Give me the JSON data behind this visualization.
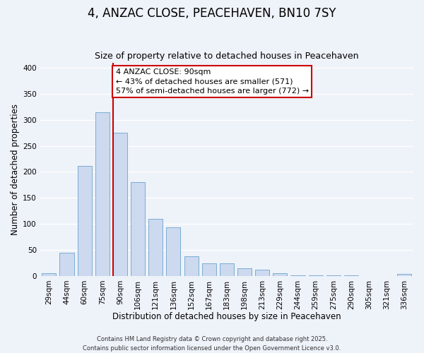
{
  "title": "4, ANZAC CLOSE, PEACEHAVEN, BN10 7SY",
  "subtitle": "Size of property relative to detached houses in Peacehaven",
  "xlabel": "Distribution of detached houses by size in Peacehaven",
  "ylabel": "Number of detached properties",
  "categories": [
    "29sqm",
    "44sqm",
    "60sqm",
    "75sqm",
    "90sqm",
    "106sqm",
    "121sqm",
    "136sqm",
    "152sqm",
    "167sqm",
    "183sqm",
    "198sqm",
    "213sqm",
    "229sqm",
    "244sqm",
    "259sqm",
    "275sqm",
    "290sqm",
    "305sqm",
    "321sqm",
    "336sqm"
  ],
  "values": [
    5,
    44,
    211,
    315,
    275,
    180,
    110,
    93,
    38,
    24,
    24,
    15,
    12,
    5,
    1,
    1,
    1,
    1,
    0,
    0,
    4
  ],
  "bar_color": "#ccd9ef",
  "bar_edge_color": "#7aadd4",
  "vline_index": 4,
  "vline_color": "#cc0000",
  "ylim": [
    0,
    410
  ],
  "yticks": [
    0,
    50,
    100,
    150,
    200,
    250,
    300,
    350,
    400
  ],
  "annotation_line1": "4 ANZAC CLOSE: 90sqm",
  "annotation_line2": "← 43% of detached houses are smaller (571)",
  "annotation_line3": "57% of semi-detached houses are larger (772) →",
  "footer_line1": "Contains HM Land Registry data © Crown copyright and database right 2025.",
  "footer_line2": "Contains public sector information licensed under the Open Government Licence v3.0.",
  "background_color": "#eef2f9",
  "grid_color": "#ffffff",
  "title_fontsize": 12,
  "subtitle_fontsize": 9,
  "xlabel_fontsize": 8.5,
  "ylabel_fontsize": 8.5,
  "tick_fontsize": 7.5,
  "annotation_fontsize": 8,
  "footer_fontsize": 6
}
